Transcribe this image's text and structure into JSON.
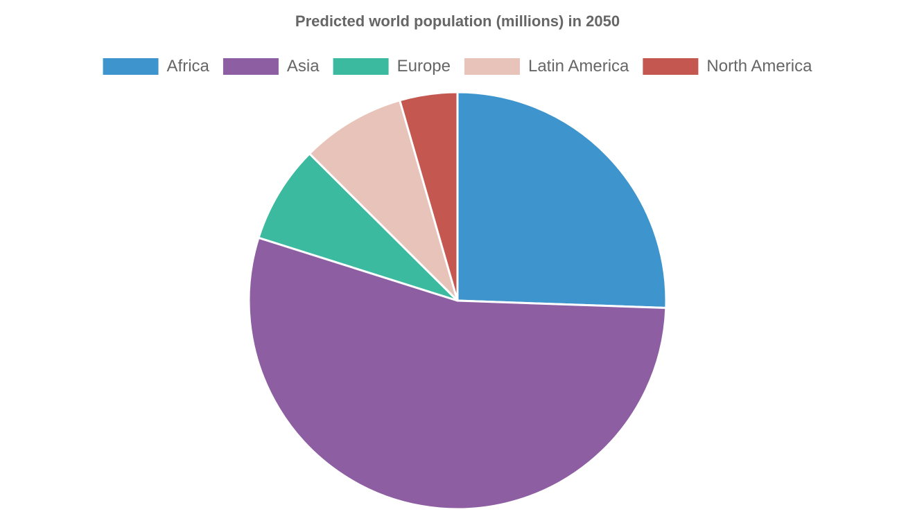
{
  "chart_data": {
    "type": "pie",
    "title": "Predicted world population (millions) in 2050",
    "legend_position": "top",
    "categories": [
      "Africa",
      "Asia",
      "Europe",
      "Latin America",
      "North America"
    ],
    "values": [
      2478,
      5267,
      734,
      784,
      433
    ],
    "colors": [
      "#3e95cd",
      "#8e5ea2",
      "#3cba9f",
      "#e8c3b9",
      "#c45850"
    ]
  }
}
